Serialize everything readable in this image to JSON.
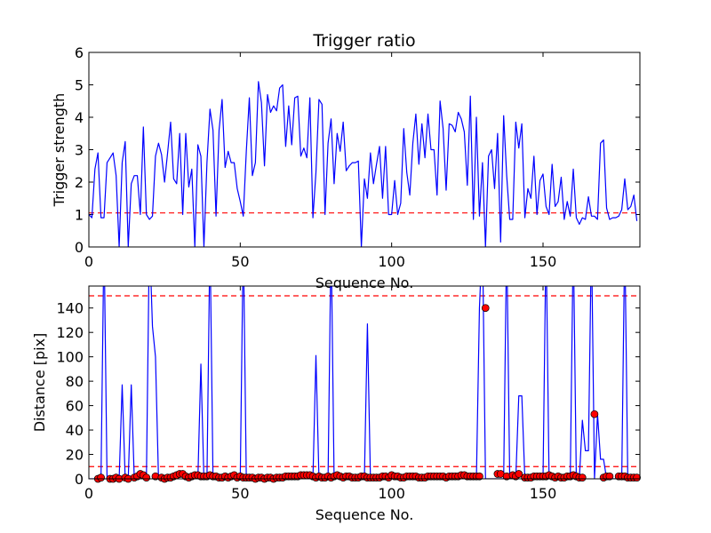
{
  "chart_data": [
    {
      "type": "line",
      "title": "Trigger ratio",
      "xlabel": "Sequence No.",
      "ylabel": "Trigger strength",
      "xlim": [
        0,
        182
      ],
      "ylim": [
        0,
        6
      ],
      "xticks": [
        0,
        50,
        100,
        150
      ],
      "yticks": [
        0,
        1,
        2,
        3,
        4,
        5,
        6
      ],
      "grid": false,
      "threshold": {
        "value": 1.05,
        "color": "#ff0000",
        "style": "dashed"
      },
      "series": [
        {
          "color": "#0000ff",
          "values": [
            1.0,
            0.9,
            2.4,
            2.9,
            0.9,
            0.9,
            2.6,
            2.75,
            2.9,
            2.2,
            0.0,
            2.6,
            3.25,
            0.0,
            1.95,
            2.2,
            2.2,
            1.0,
            3.7,
            1.0,
            0.85,
            0.95,
            2.8,
            3.2,
            2.85,
            2.0,
            2.9,
            3.85,
            2.1,
            1.95,
            3.5,
            1.0,
            3.5,
            1.85,
            2.4,
            0.0,
            3.15,
            2.8,
            0.0,
            2.6,
            4.25,
            3.6,
            0.95,
            3.6,
            4.55,
            2.45,
            2.95,
            2.6,
            2.6,
            1.8,
            1.4,
            0.95,
            2.95,
            4.6,
            2.2,
            2.6,
            5.1,
            4.45,
            2.5,
            4.7,
            4.15,
            4.35,
            4.2,
            4.9,
            5.0,
            3.1,
            4.35,
            3.15,
            4.6,
            4.65,
            2.8,
            3.05,
            2.75,
            4.6,
            0.9,
            2.3,
            4.55,
            4.4,
            1.0,
            3.2,
            3.95,
            1.95,
            3.5,
            2.95,
            3.85,
            2.35,
            2.5,
            2.6,
            2.6,
            2.65,
            0.0,
            2.1,
            1.5,
            2.9,
            1.95,
            2.55,
            3.1,
            1.5,
            3.1,
            1.0,
            1.0,
            2.05,
            1.0,
            1.35,
            3.65,
            2.3,
            1.6,
            3.2,
            4.1,
            2.55,
            3.8,
            2.75,
            4.1,
            3.0,
            3.0,
            1.6,
            4.5,
            3.65,
            1.75,
            3.8,
            3.75,
            3.55,
            4.15,
            3.95,
            3.55,
            1.9,
            4.65,
            0.85,
            4.0,
            0.95,
            2.6,
            0.0,
            2.8,
            3.0,
            1.8,
            3.5,
            0.15,
            4.05,
            2.2,
            0.85,
            0.85,
            3.85,
            3.05,
            3.8,
            0.9,
            1.8,
            1.5,
            2.8,
            1.0,
            2.05,
            2.25,
            1.25,
            1.0,
            2.55,
            1.25,
            1.4,
            2.15,
            0.85,
            1.4,
            0.95,
            2.4,
            0.9,
            0.7,
            0.9,
            0.85,
            1.55,
            0.95,
            0.95,
            0.85,
            3.2,
            3.3,
            1.2,
            0.85,
            0.9,
            0.9,
            0.95,
            1.15,
            2.1,
            1.15,
            1.25,
            1.6,
            0.8
          ]
        }
      ]
    },
    {
      "type": "line",
      "title": "",
      "xlabel": "Sequence No.",
      "ylabel": "Distance [pix]",
      "xlim": [
        0,
        182
      ],
      "ylim": [
        0,
        158
      ],
      "xticks": [
        0,
        50,
        100,
        150
      ],
      "yticks": [
        0,
        20,
        40,
        60,
        80,
        100,
        120,
        140
      ],
      "grid": false,
      "thresholds": [
        {
          "value": 150,
          "color": "#ff0000",
          "style": "dashed"
        },
        {
          "value": 10,
          "color": "#ff0000",
          "style": "dashed"
        }
      ],
      "series": [
        {
          "color": "#0000ff",
          "values": [
            0,
            0,
            0,
            0,
            0,
            200,
            0,
            0,
            0,
            0,
            0,
            77,
            0,
            0,
            77,
            0,
            0,
            0,
            0,
            0,
            200,
            125,
            100,
            0,
            0,
            0,
            0,
            0,
            0,
            0,
            2,
            2,
            0,
            0,
            0,
            0,
            0,
            94,
            0,
            0,
            200,
            0,
            0,
            0,
            0,
            0,
            0,
            0,
            0,
            0,
            0,
            200,
            0,
            0,
            0,
            0,
            0,
            0,
            0,
            0,
            0,
            0,
            0,
            0,
            0,
            0,
            0,
            0,
            0,
            0,
            0,
            0,
            0,
            0,
            0,
            101,
            0,
            0,
            0,
            0,
            200,
            0,
            0,
            0,
            0,
            0,
            0,
            0,
            0,
            0,
            0,
            0,
            127,
            0,
            0,
            0,
            0,
            0,
            0,
            0,
            0,
            0,
            0,
            0,
            0,
            0,
            0,
            0,
            0,
            0,
            0,
            0,
            0,
            0,
            0,
            0,
            0,
            0,
            0,
            0,
            0,
            0,
            0,
            0,
            0,
            0,
            0,
            0,
            0,
            140,
            200,
            0,
            0,
            0,
            0,
            0,
            0,
            0,
            200,
            0,
            0,
            0,
            68,
            68,
            0,
            0,
            0,
            0,
            0,
            0,
            0,
            200,
            0,
            0,
            0,
            0,
            0,
            0,
            0,
            0,
            200,
            0,
            0,
            48,
            23,
            23,
            200,
            0,
            53,
            16,
            16,
            0,
            0,
            0,
            0,
            0,
            0,
            200,
            0,
            0,
            0,
            0
          ]
        }
      ],
      "markers": {
        "color": "#ff0000",
        "points": [
          [
            3,
            0
          ],
          [
            4,
            1
          ],
          [
            7,
            0
          ],
          [
            8,
            0
          ],
          [
            9,
            1
          ],
          [
            10,
            0
          ],
          [
            12,
            1
          ],
          [
            13,
            0
          ],
          [
            15,
            1
          ],
          [
            16,
            2
          ],
          [
            17,
            4
          ],
          [
            18,
            3
          ],
          [
            19,
            1
          ],
          [
            22,
            2
          ],
          [
            24,
            1
          ],
          [
            25,
            0
          ],
          [
            26,
            1
          ],
          [
            27,
            1
          ],
          [
            28,
            2
          ],
          [
            29,
            3
          ],
          [
            30,
            4
          ],
          [
            31,
            4
          ],
          [
            32,
            2
          ],
          [
            33,
            1
          ],
          [
            34,
            2
          ],
          [
            35,
            3
          ],
          [
            36,
            3
          ],
          [
            37,
            2
          ],
          [
            38,
            2
          ],
          [
            39,
            2
          ],
          [
            40,
            3
          ],
          [
            41,
            2
          ],
          [
            42,
            2
          ],
          [
            43,
            1
          ],
          [
            44,
            1
          ],
          [
            45,
            2
          ],
          [
            46,
            1
          ],
          [
            47,
            2
          ],
          [
            48,
            3
          ],
          [
            49,
            1
          ],
          [
            50,
            2
          ],
          [
            51,
            1
          ],
          [
            52,
            1
          ],
          [
            53,
            1
          ],
          [
            54,
            1
          ],
          [
            55,
            0
          ],
          [
            56,
            1
          ],
          [
            57,
            1
          ],
          [
            58,
            0
          ],
          [
            59,
            1
          ],
          [
            60,
            1
          ],
          [
            61,
            0
          ],
          [
            62,
            1
          ],
          [
            63,
            1
          ],
          [
            64,
            1
          ],
          [
            65,
            2
          ],
          [
            66,
            2
          ],
          [
            67,
            2
          ],
          [
            68,
            2
          ],
          [
            69,
            2
          ],
          [
            70,
            3
          ],
          [
            71,
            3
          ],
          [
            72,
            3
          ],
          [
            73,
            3
          ],
          [
            74,
            2
          ],
          [
            75,
            1
          ],
          [
            76,
            2
          ],
          [
            77,
            1
          ],
          [
            78,
            1
          ],
          [
            79,
            2
          ],
          [
            80,
            1
          ],
          [
            81,
            2
          ],
          [
            82,
            3
          ],
          [
            83,
            2
          ],
          [
            84,
            1
          ],
          [
            85,
            2
          ],
          [
            86,
            2
          ],
          [
            87,
            1
          ],
          [
            88,
            1
          ],
          [
            89,
            1
          ],
          [
            90,
            2
          ],
          [
            91,
            2
          ],
          [
            92,
            1
          ],
          [
            93,
            1
          ],
          [
            94,
            1
          ],
          [
            95,
            1
          ],
          [
            96,
            1
          ],
          [
            97,
            2
          ],
          [
            98,
            2
          ],
          [
            99,
            1
          ],
          [
            100,
            3
          ],
          [
            101,
            2
          ],
          [
            102,
            2
          ],
          [
            103,
            1
          ],
          [
            104,
            1
          ],
          [
            105,
            2
          ],
          [
            106,
            2
          ],
          [
            107,
            2
          ],
          [
            108,
            2
          ],
          [
            109,
            1
          ],
          [
            110,
            1
          ],
          [
            111,
            1
          ],
          [
            112,
            2
          ],
          [
            113,
            2
          ],
          [
            114,
            2
          ],
          [
            115,
            2
          ],
          [
            116,
            2
          ],
          [
            117,
            2
          ],
          [
            118,
            1
          ],
          [
            119,
            2
          ],
          [
            120,
            2
          ],
          [
            121,
            2
          ],
          [
            122,
            2
          ],
          [
            123,
            3
          ],
          [
            124,
            3
          ],
          [
            125,
            2
          ],
          [
            126,
            2
          ],
          [
            127,
            2
          ],
          [
            128,
            2
          ],
          [
            129,
            2
          ],
          [
            131,
            140
          ],
          [
            135,
            4
          ],
          [
            136,
            4
          ],
          [
            138,
            2
          ],
          [
            140,
            3
          ],
          [
            141,
            2
          ],
          [
            142,
            4
          ],
          [
            144,
            1
          ],
          [
            145,
            1
          ],
          [
            146,
            1
          ],
          [
            147,
            2
          ],
          [
            148,
            2
          ],
          [
            149,
            2
          ],
          [
            150,
            2
          ],
          [
            151,
            2
          ],
          [
            152,
            3
          ],
          [
            153,
            2
          ],
          [
            154,
            1
          ],
          [
            155,
            2
          ],
          [
            156,
            1
          ],
          [
            157,
            1
          ],
          [
            158,
            2
          ],
          [
            159,
            2
          ],
          [
            160,
            3
          ],
          [
            161,
            2
          ],
          [
            162,
            1
          ],
          [
            163,
            1
          ],
          [
            167,
            53
          ],
          [
            170,
            1
          ],
          [
            171,
            2
          ],
          [
            172,
            2
          ],
          [
            175,
            2
          ],
          [
            176,
            2
          ],
          [
            177,
            2
          ],
          [
            178,
            1
          ],
          [
            179,
            1
          ],
          [
            180,
            1
          ],
          [
            181,
            1
          ]
        ]
      }
    }
  ]
}
